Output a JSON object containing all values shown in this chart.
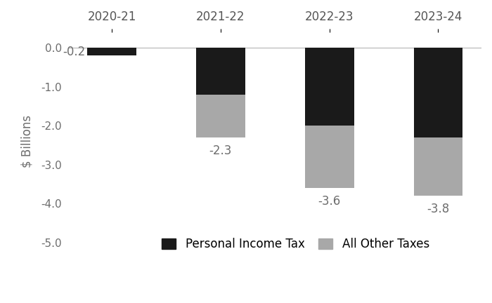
{
  "categories": [
    "2020-21",
    "2021-22",
    "2022-23",
    "2023-24"
  ],
  "personal_income_tax": [
    -0.2,
    -1.2,
    -2.0,
    -2.3
  ],
  "all_other_taxes": [
    0.0,
    -1.1,
    -1.6,
    -1.5
  ],
  "totals": [
    -0.2,
    -2.3,
    -3.6,
    -3.8
  ],
  "color_pit": "#1a1a1a",
  "color_aot": "#a8a8a8",
  "ylabel": "$ Billions",
  "ylim": [
    -5.2,
    0.4
  ],
  "yticks": [
    0.0,
    -1.0,
    -2.0,
    -3.0,
    -4.0,
    -5.0
  ],
  "ytick_labels": [
    "0.0",
    "-1.0",
    "-2.0",
    "-3.0",
    "-4.0",
    "-5.0"
  ],
  "legend_pit": "Personal Income Tax",
  "legend_aot": "All Other Taxes",
  "bar_width": 0.45,
  "label_fontsize": 12,
  "axis_fontsize": 11,
  "cat_fontsize": 12,
  "ylabel_fontsize": 12,
  "text_color": "#6d6d6d"
}
